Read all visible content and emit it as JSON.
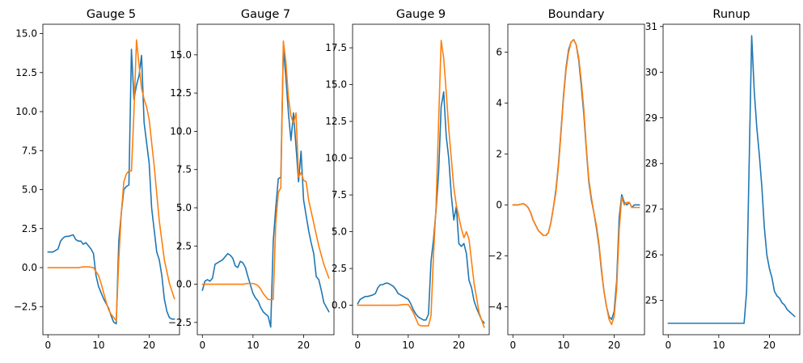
{
  "figure": {
    "colors": {
      "series_a": "#1f77b4",
      "series_b": "#ff7f0e"
    }
  },
  "chart_data": [
    {
      "type": "line",
      "title": "Gauge 5",
      "xlim": [
        -1,
        26
      ],
      "ylim": [
        -4.3,
        15.6
      ],
      "xticks": [
        0,
        10,
        20
      ],
      "yticks": [
        -2.5,
        0.0,
        2.5,
        5.0,
        7.5,
        10.0,
        12.5,
        15.0
      ],
      "ytick_labels": [
        "−2.5",
        "0.0",
        "2.5",
        "5.0",
        "7.5",
        "10.0",
        "12.5",
        "15.0"
      ],
      "xtick_labels": [
        "0",
        "10",
        "20"
      ],
      "series": [
        {
          "color": "#1f77b4",
          "x": [
            0,
            1,
            1.5,
            2,
            2.5,
            3,
            3.5,
            4,
            5,
            5.5,
            6,
            6.5,
            7,
            7.5,
            8,
            8.5,
            9,
            9.5,
            10,
            10.5,
            11,
            12,
            12.5,
            13,
            13.5,
            14,
            14.5,
            15,
            15.5,
            16,
            16.5,
            17,
            17.5,
            18,
            18.5,
            19,
            19.5,
            20,
            20.5,
            21,
            21.5,
            22,
            22.5,
            23,
            23.5,
            24,
            24.5,
            25
          ],
          "y": [
            1.0,
            1.0,
            1.1,
            1.2,
            1.7,
            1.9,
            2.0,
            2.0,
            2.1,
            1.8,
            1.7,
            1.7,
            1.5,
            1.6,
            1.4,
            1.2,
            0.9,
            -0.5,
            -1.2,
            -1.6,
            -2.0,
            -2.6,
            -3.1,
            -3.5,
            -3.6,
            1.7,
            3.5,
            5.0,
            5.2,
            5.3,
            14.0,
            10.8,
            11.7,
            12.3,
            13.6,
            9.3,
            8.0,
            6.7,
            3.8,
            2.4,
            1.0,
            0.5,
            -0.5,
            -2.0,
            -2.8,
            -3.2,
            -3.3,
            -3.3
          ]
        },
        {
          "color": "#ff7f0e",
          "x": [
            0,
            2,
            4,
            6,
            7,
            8,
            9,
            10,
            10.5,
            11,
            11.5,
            12,
            12.5,
            13,
            13.5,
            14,
            14.5,
            15,
            15.5,
            16,
            16.5,
            17,
            17.5,
            18,
            18.5,
            19,
            19.5,
            20,
            21,
            22,
            23,
            24,
            25
          ],
          "y": [
            0,
            0,
            0,
            0,
            0.05,
            0.05,
            0,
            -0.5,
            -1.0,
            -1.6,
            -2.2,
            -2.7,
            -3.0,
            -3.2,
            -3.4,
            0.5,
            3.5,
            5.5,
            6.0,
            6.2,
            6.2,
            10.0,
            14.6,
            13.0,
            11.5,
            10.8,
            10.3,
            9.5,
            6.5,
            3.0,
            0.5,
            -1.0,
            -2.0
          ]
        }
      ]
    },
    {
      "type": "line",
      "title": "Gauge 7",
      "xlim": [
        -1,
        26
      ],
      "ylim": [
        -3.3,
        17.0
      ],
      "xticks": [
        0,
        10,
        20
      ],
      "yticks": [
        -2.5,
        0.0,
        2.5,
        5.0,
        7.5,
        10.0,
        12.5,
        15.0
      ],
      "ytick_labels": [
        "−2.5",
        "0.0",
        "2.5",
        "5.0",
        "7.5",
        "10.0",
        "12.5",
        "15.0"
      ],
      "xtick_labels": [
        "0",
        "10",
        "20"
      ],
      "series": [
        {
          "color": "#1f77b4",
          "x": [
            0,
            0.5,
            1,
            1.5,
            2,
            2.5,
            3,
            3.5,
            4,
            5,
            5.5,
            6,
            6.5,
            7,
            7.5,
            8,
            8.5,
            9,
            10,
            10.5,
            11,
            11.5,
            12,
            13,
            13.5,
            14,
            14.5,
            15,
            15.5,
            16,
            16.5,
            17,
            17.5,
            18,
            18.5,
            19,
            19.5,
            20,
            20.5,
            21,
            21.5,
            22,
            22.5,
            23,
            23.5,
            24,
            24.5,
            25
          ],
          "y": [
            -0.4,
            0.2,
            0.3,
            0.2,
            0.4,
            1.3,
            1.4,
            1.5,
            1.6,
            2.0,
            1.9,
            1.7,
            1.2,
            1.1,
            1.5,
            1.4,
            1.1,
            0.5,
            -0.6,
            -0.9,
            -1.1,
            -1.5,
            -1.8,
            -2.1,
            -2.8,
            2.8,
            5.0,
            6.9,
            7.0,
            15.5,
            13.5,
            11.2,
            9.4,
            11.2,
            9.0,
            6.7,
            8.7,
            5.5,
            4.5,
            3.5,
            2.7,
            2.0,
            0.5,
            0.3,
            -0.4,
            -1.2,
            -1.5,
            -1.8
          ]
        },
        {
          "color": "#ff7f0e",
          "x": [
            0,
            2,
            4,
            6,
            8,
            9,
            10,
            10.5,
            11,
            11.5,
            12,
            12.5,
            13,
            14,
            14.5,
            15,
            15.5,
            16,
            16.5,
            17,
            17.5,
            18,
            18.5,
            19,
            19.5,
            20,
            20.5,
            21,
            22,
            23,
            24,
            25
          ],
          "y": [
            0,
            0,
            0,
            0,
            0,
            0.05,
            0.05,
            0,
            -0.1,
            -0.3,
            -0.6,
            -0.8,
            -1.0,
            -1.0,
            4.0,
            6.0,
            6.3,
            15.9,
            14.5,
            12.2,
            11.0,
            10.5,
            11.2,
            7.0,
            7.3,
            6.8,
            6.7,
            5.5,
            4.0,
            2.5,
            1.3,
            0.4
          ]
        }
      ]
    },
    {
      "type": "line",
      "title": "Gauge 9",
      "xlim": [
        -1,
        26
      ],
      "ylim": [
        -2.0,
        19.1
      ],
      "xticks": [
        0,
        10,
        20
      ],
      "yticks": [
        0.0,
        2.5,
        5.0,
        7.5,
        10.0,
        12.5,
        15.0,
        17.5
      ],
      "ytick_labels": [
        "0.0",
        "2.5",
        "5.0",
        "7.5",
        "10.0",
        "12.5",
        "15.0",
        "17.5"
      ],
      "xtick_labels": [
        "0",
        "10",
        "20"
      ],
      "series": [
        {
          "color": "#1f77b4",
          "x": [
            0,
            0.5,
            1,
            1.5,
            2,
            3,
            3.5,
            4,
            4.5,
            5,
            5.5,
            6,
            6.5,
            7,
            7.5,
            8,
            8.5,
            9,
            9.5,
            10,
            10.5,
            11,
            11.5,
            12,
            12.5,
            13,
            13.5,
            14,
            14.5,
            15,
            15.5,
            16,
            16.5,
            17,
            17.5,
            18,
            18.5,
            19,
            19.5,
            20,
            20.5,
            21,
            21.5,
            22,
            22.5,
            23,
            23.5,
            24,
            24.5,
            25
          ],
          "y": [
            0.1,
            0.4,
            0.5,
            0.6,
            0.6,
            0.7,
            0.8,
            1.2,
            1.4,
            1.4,
            1.5,
            1.5,
            1.4,
            1.3,
            1.1,
            0.8,
            0.7,
            0.6,
            0.5,
            0.4,
            0.1,
            -0.3,
            -0.6,
            -0.8,
            -0.9,
            -1.0,
            -1.0,
            -0.6,
            3.0,
            4.5,
            6.5,
            9.0,
            13.5,
            14.5,
            11.5,
            10.0,
            7.5,
            5.8,
            6.7,
            4.2,
            4.0,
            4.2,
            3.5,
            1.7,
            1.2,
            0.3,
            -0.2,
            -0.6,
            -1.0,
            -1.2
          ]
        },
        {
          "color": "#ff7f0e",
          "x": [
            0,
            2,
            4,
            6,
            8,
            9,
            10,
            10.5,
            11,
            11.5,
            12,
            12.5,
            13,
            14,
            14.5,
            15,
            15.5,
            16,
            16.5,
            17,
            17.5,
            18,
            18.5,
            19,
            19.5,
            20,
            20.5,
            21,
            21.5,
            22,
            23,
            24,
            25
          ],
          "y": [
            0,
            0,
            0,
            0,
            0,
            0.05,
            0.05,
            -0.2,
            -0.5,
            -0.9,
            -1.3,
            -1.4,
            -1.4,
            -1.4,
            -0.7,
            3.5,
            6.8,
            12.5,
            18.0,
            16.8,
            14.5,
            12.0,
            10.0,
            8.0,
            6.8,
            6.0,
            5.2,
            4.6,
            5.0,
            4.5,
            1.5,
            -0.5,
            -1.5
          ]
        }
      ]
    },
    {
      "type": "line",
      "title": "Boundary",
      "xlim": [
        -1,
        26
      ],
      "ylim": [
        -5.1,
        7.1
      ],
      "xticks": [
        0,
        10,
        20
      ],
      "yticks": [
        -4,
        -2,
        0,
        2,
        4,
        6
      ],
      "ytick_labels": [
        "−4",
        "−2",
        "0",
        "2",
        "4",
        "6"
      ],
      "xtick_labels": [
        "0",
        "10",
        "20"
      ],
      "series": [
        {
          "color": "#1f77b4",
          "x": [
            0,
            1,
            2,
            2.5,
            3,
            3.5,
            4,
            4.5,
            5,
            6,
            6.5,
            7,
            7.5,
            8,
            8.5,
            9,
            9.5,
            10,
            10.5,
            11,
            11.5,
            12,
            12.5,
            13,
            13.5,
            14,
            14.5,
            15,
            15.5,
            16,
            16.5,
            17,
            17.5,
            18,
            18.5,
            19,
            19.5,
            20,
            20.5,
            21,
            21.5,
            22,
            22.5,
            23,
            23.5,
            24,
            24.5,
            25
          ],
          "y": [
            0,
            0,
            0.05,
            0,
            -0.1,
            -0.3,
            -0.6,
            -0.8,
            -1.0,
            -1.2,
            -1.2,
            -1.1,
            -0.7,
            -0.1,
            0.6,
            1.6,
            2.9,
            4.3,
            5.4,
            6.1,
            6.4,
            6.5,
            6.3,
            5.7,
            4.7,
            3.6,
            2.2,
            0.9,
            0.2,
            -0.3,
            -0.9,
            -1.6,
            -2.6,
            -3.4,
            -4.0,
            -4.4,
            -4.5,
            -4.2,
            -3.0,
            -0.5,
            0.4,
            0.1,
            0.0,
            0.1,
            -0.1,
            0.0,
            0.0,
            0.0
          ]
        },
        {
          "color": "#ff7f0e",
          "x": [
            0,
            1,
            2,
            2.5,
            3,
            3.5,
            4,
            4.5,
            5,
            6,
            6.5,
            7,
            7.5,
            8,
            8.5,
            9,
            9.5,
            10,
            10.5,
            11,
            11.5,
            12,
            12.5,
            13,
            13.5,
            14,
            14.5,
            15,
            15.5,
            16,
            16.5,
            17,
            17.5,
            18,
            18.5,
            19,
            19.5,
            20,
            20.5,
            21,
            21.5,
            22,
            22.5,
            23,
            23.5,
            24,
            24.5,
            25
          ],
          "y": [
            0,
            0,
            0.05,
            0,
            -0.1,
            -0.3,
            -0.6,
            -0.8,
            -1.0,
            -1.2,
            -1.2,
            -1.1,
            -0.7,
            -0.1,
            0.5,
            1.5,
            2.8,
            4.2,
            5.3,
            6.0,
            6.4,
            6.5,
            6.3,
            5.8,
            4.9,
            3.8,
            2.3,
            1.0,
            0.3,
            -0.3,
            -0.8,
            -1.5,
            -2.5,
            -3.4,
            -4.0,
            -4.5,
            -4.7,
            -4.4,
            -3.3,
            -1.0,
            0.3,
            0.0,
            0.1,
            0.1,
            -0.1,
            -0.1,
            -0.1,
            -0.1
          ]
        }
      ]
    },
    {
      "type": "line",
      "title": "Runup",
      "xlim": [
        -1,
        26
      ],
      "ylim": [
        24.25,
        31.05
      ],
      "xticks": [
        0,
        10,
        20
      ],
      "yticks": [
        25,
        26,
        27,
        28,
        29,
        30,
        31
      ],
      "ytick_labels": [
        "25",
        "26",
        "27",
        "28",
        "29",
        "30",
        "31"
      ],
      "xtick_labels": [
        "0",
        "10",
        "20"
      ],
      "series": [
        {
          "color": "#1f77b4",
          "x": [
            0,
            2,
            4,
            6,
            8,
            10,
            12,
            14,
            15,
            15.5,
            16,
            16.5,
            17,
            17.5,
            18,
            18.5,
            19,
            19.5,
            20,
            20.5,
            21,
            21.5,
            22,
            22.5,
            23,
            23.5,
            24,
            24.5,
            25
          ],
          "y": [
            24.5,
            24.5,
            24.5,
            24.5,
            24.5,
            24.5,
            24.5,
            24.5,
            24.5,
            25.2,
            28.0,
            30.8,
            29.6,
            28.8,
            28.2,
            27.5,
            26.6,
            26.0,
            25.7,
            25.5,
            25.2,
            25.1,
            25.05,
            24.95,
            24.9,
            24.8,
            24.75,
            24.7,
            24.65
          ]
        }
      ]
    }
  ]
}
